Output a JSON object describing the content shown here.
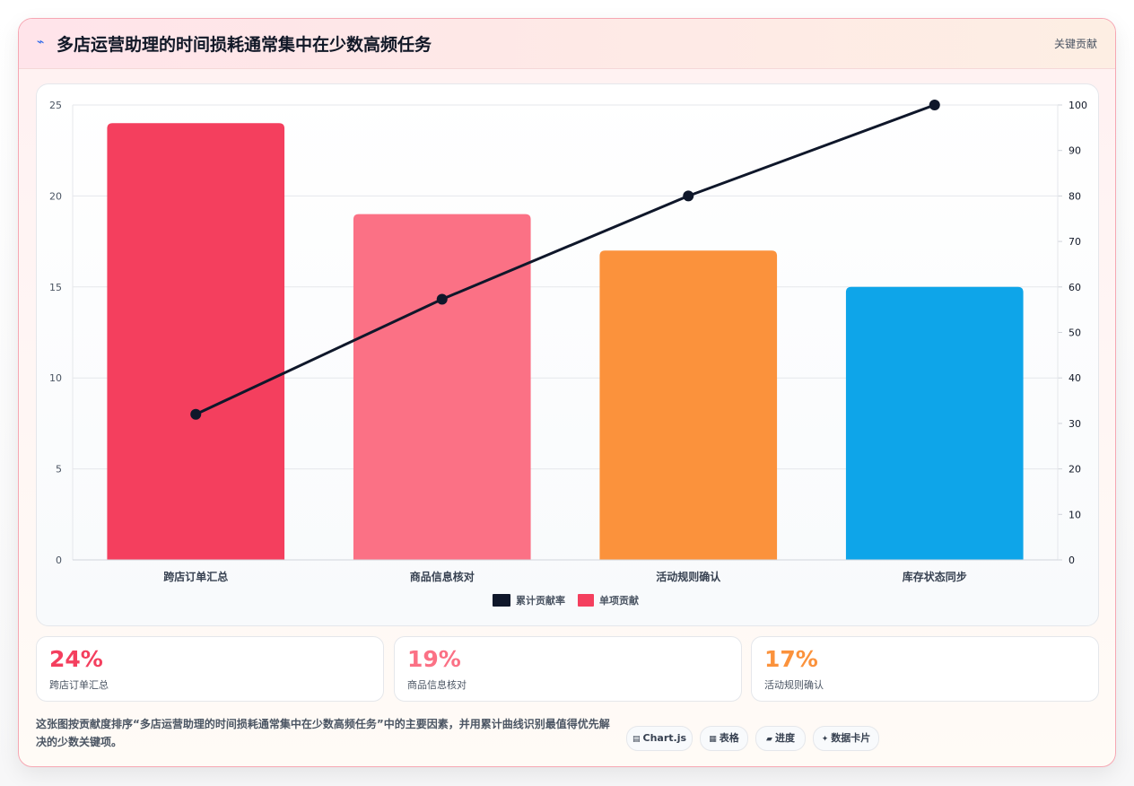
{
  "header": {
    "icon": "⌁",
    "title": "多店运营助理的时间损耗通常集中在少数高频任务",
    "badge": "关键贡献"
  },
  "chart_data": {
    "type": "bar",
    "categories": [
      "跨店订单汇总",
      "商品信息核对",
      "活动规则确认",
      "库存状态同步"
    ],
    "series": [
      {
        "name": "单项贡献",
        "type": "bar",
        "values": [
          24,
          19,
          17,
          15
        ],
        "colors": [
          "#f43f5e",
          "#fb7185",
          "#fb923c",
          "#0ea5e9"
        ]
      },
      {
        "name": "累计贡献率",
        "type": "line",
        "axis": "right",
        "values": [
          32,
          57.3,
          80,
          100
        ],
        "color": "#0f172a"
      }
    ],
    "y_left": {
      "min": 0,
      "max": 25,
      "ticks": [
        "0",
        "5",
        "10",
        "15",
        "20",
        "25"
      ]
    },
    "y_right": {
      "min": 0,
      "max": 100,
      "ticks": [
        "0",
        "10",
        "20",
        "30",
        "40",
        "50",
        "60",
        "70",
        "80",
        "90",
        "100"
      ]
    },
    "legend": {
      "placement": "bottom",
      "items": [
        {
          "label": "累计贡献率",
          "color": "#0f172a"
        },
        {
          "label": "单项贡献",
          "color": "#f43f5e"
        }
      ]
    },
    "grid": true
  },
  "stats": [
    {
      "value": "24%",
      "label": "跨店订单汇总",
      "color": "#f43f5e"
    },
    {
      "value": "19%",
      "label": "商品信息核对",
      "color": "#fb7185"
    },
    {
      "value": "17%",
      "label": "活动规则确认",
      "color": "#fb923c"
    }
  ],
  "note": "这张图按贡献度排序“多店运营助理的时间损耗通常集中在少数高频任务”中的主要因素，并用累计曲线识别最值得优先解决的少数关键项。",
  "tags": [
    {
      "icon": "▤",
      "label": "Chart.js"
    },
    {
      "icon": "▦",
      "label": "表格"
    },
    {
      "icon": "▰",
      "label": "进度"
    },
    {
      "icon": "✦",
      "label": "数据卡片"
    }
  ]
}
